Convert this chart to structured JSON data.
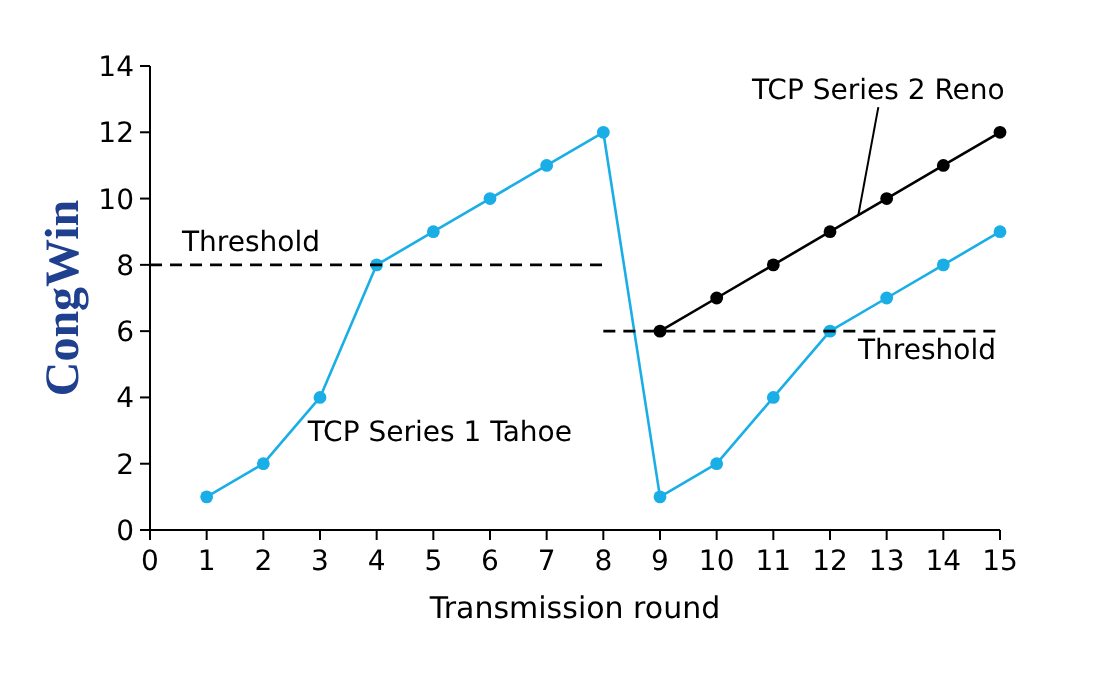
{
  "chart_data": {
    "type": "line",
    "xlabel": "Transmission round",
    "ylabel": "CongWin",
    "xlim": [
      0,
      15
    ],
    "xticks": [
      0,
      1,
      2,
      3,
      4,
      5,
      6,
      7,
      8,
      9,
      10,
      11,
      12,
      13,
      14,
      15
    ],
    "ylim": [
      0,
      14
    ],
    "yticks": [
      0,
      2,
      4,
      6,
      8,
      10,
      12,
      14
    ],
    "grid": false,
    "marker": "circle",
    "series": [
      {
        "name": "TCP Series 1 Tahoe",
        "color": "#1aaee6",
        "x": [
          1,
          2,
          3,
          4,
          5,
          6,
          7,
          8,
          9,
          10,
          11,
          12,
          13,
          14,
          15
        ],
        "values": [
          1,
          2,
          4,
          8,
          9,
          10,
          11,
          12,
          1,
          2,
          4,
          6,
          7,
          8,
          9
        ]
      },
      {
        "name": "TCP Series 2 Reno",
        "color": "#000000",
        "x": [
          9,
          10,
          11,
          12,
          13,
          14,
          15
        ],
        "values": [
          6,
          7,
          8,
          9,
          10,
          11,
          12
        ]
      },
      {
        "name": "Threshold",
        "color": "#000000",
        "marker": "none",
        "line_style": "dashed",
        "x": [
          0,
          8
        ],
        "values": [
          8,
          8
        ]
      },
      {
        "name": "Threshold",
        "color": "#000000",
        "marker": "none",
        "line_style": "dashed",
        "x": [
          8,
          15
        ],
        "values": [
          6,
          6
        ]
      }
    ]
  }
}
